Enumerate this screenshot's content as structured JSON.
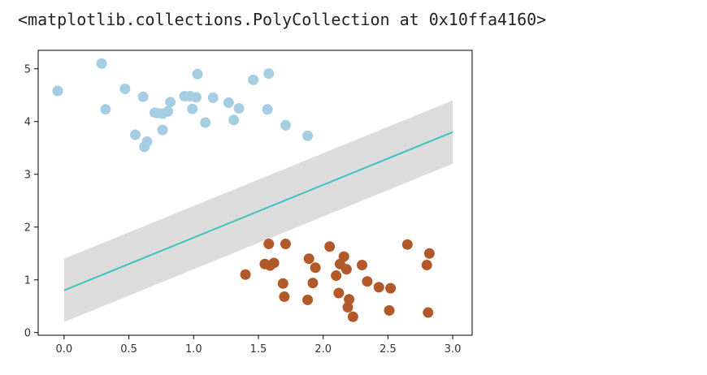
{
  "output_text": "<matplotlib.collections.PolyCollection at 0x10ffa4160>",
  "chart_data": {
    "type": "scatter",
    "title": "",
    "xlabel": "",
    "ylabel": "",
    "xlim": [
      -0.2,
      3.15
    ],
    "ylim": [
      -0.05,
      5.35
    ],
    "xticks": [
      0.0,
      0.5,
      1.0,
      1.5,
      2.0,
      2.5,
      3.0
    ],
    "xtick_labels": [
      "0.0",
      "0.5",
      "1.0",
      "1.5",
      "2.0",
      "2.5",
      "3.0"
    ],
    "yticks": [
      0,
      1,
      2,
      3,
      4,
      5
    ],
    "ytick_labels": [
      "0",
      "1",
      "2",
      "3",
      "4",
      "5"
    ],
    "grid": false,
    "line": {
      "x": [
        0.0,
        3.0
      ],
      "y": [
        0.8,
        3.8
      ],
      "color": "#3fc1c0"
    },
    "band": {
      "x": [
        0.0,
        3.0
      ],
      "y_lower": [
        0.2,
        3.2
      ],
      "y_upper": [
        1.4,
        4.4
      ],
      "color": "#dcdcdc"
    },
    "series": [
      {
        "color": "#a6cee3",
        "points": [
          [
            -0.05,
            4.58
          ],
          [
            0.29,
            5.1
          ],
          [
            0.32,
            4.23
          ],
          [
            0.47,
            4.62
          ],
          [
            0.55,
            3.75
          ],
          [
            0.61,
            4.47
          ],
          [
            0.62,
            3.52
          ],
          [
            0.64,
            3.62
          ],
          [
            0.7,
            4.17
          ],
          [
            0.72,
            4.16
          ],
          [
            0.76,
            4.15
          ],
          [
            0.76,
            3.84
          ],
          [
            0.8,
            4.19
          ],
          [
            0.82,
            4.37
          ],
          [
            0.93,
            4.48
          ],
          [
            0.97,
            4.48
          ],
          [
            0.99,
            4.24
          ],
          [
            1.02,
            4.46
          ],
          [
            1.03,
            4.9
          ],
          [
            1.09,
            3.98
          ],
          [
            1.15,
            4.45
          ],
          [
            1.27,
            4.36
          ],
          [
            1.31,
            4.03
          ],
          [
            1.35,
            4.25
          ],
          [
            1.46,
            4.79
          ],
          [
            1.57,
            4.23
          ],
          [
            1.58,
            4.91
          ],
          [
            1.71,
            3.93
          ],
          [
            1.88,
            3.73
          ]
        ]
      },
      {
        "color": "#b15928",
        "points": [
          [
            1.4,
            1.1
          ],
          [
            1.55,
            1.3
          ],
          [
            1.58,
            1.68
          ],
          [
            1.59,
            1.27
          ],
          [
            1.62,
            1.32
          ],
          [
            1.69,
            0.93
          ],
          [
            1.7,
            0.68
          ],
          [
            1.71,
            1.68
          ],
          [
            1.88,
            0.62
          ],
          [
            1.89,
            1.4
          ],
          [
            1.92,
            0.94
          ],
          [
            1.94,
            1.23
          ],
          [
            2.05,
            1.63
          ],
          [
            2.1,
            1.08
          ],
          [
            2.12,
            0.75
          ],
          [
            2.13,
            1.3
          ],
          [
            2.16,
            1.44
          ],
          [
            2.18,
            1.2
          ],
          [
            2.19,
            0.48
          ],
          [
            2.2,
            0.63
          ],
          [
            2.23,
            0.3
          ],
          [
            2.3,
            1.28
          ],
          [
            2.34,
            0.97
          ],
          [
            2.43,
            0.86
          ],
          [
            2.51,
            0.42
          ],
          [
            2.52,
            0.84
          ],
          [
            2.65,
            1.67
          ],
          [
            2.8,
            1.28
          ],
          [
            2.81,
            0.38
          ],
          [
            2.82,
            1.5
          ]
        ]
      }
    ]
  }
}
